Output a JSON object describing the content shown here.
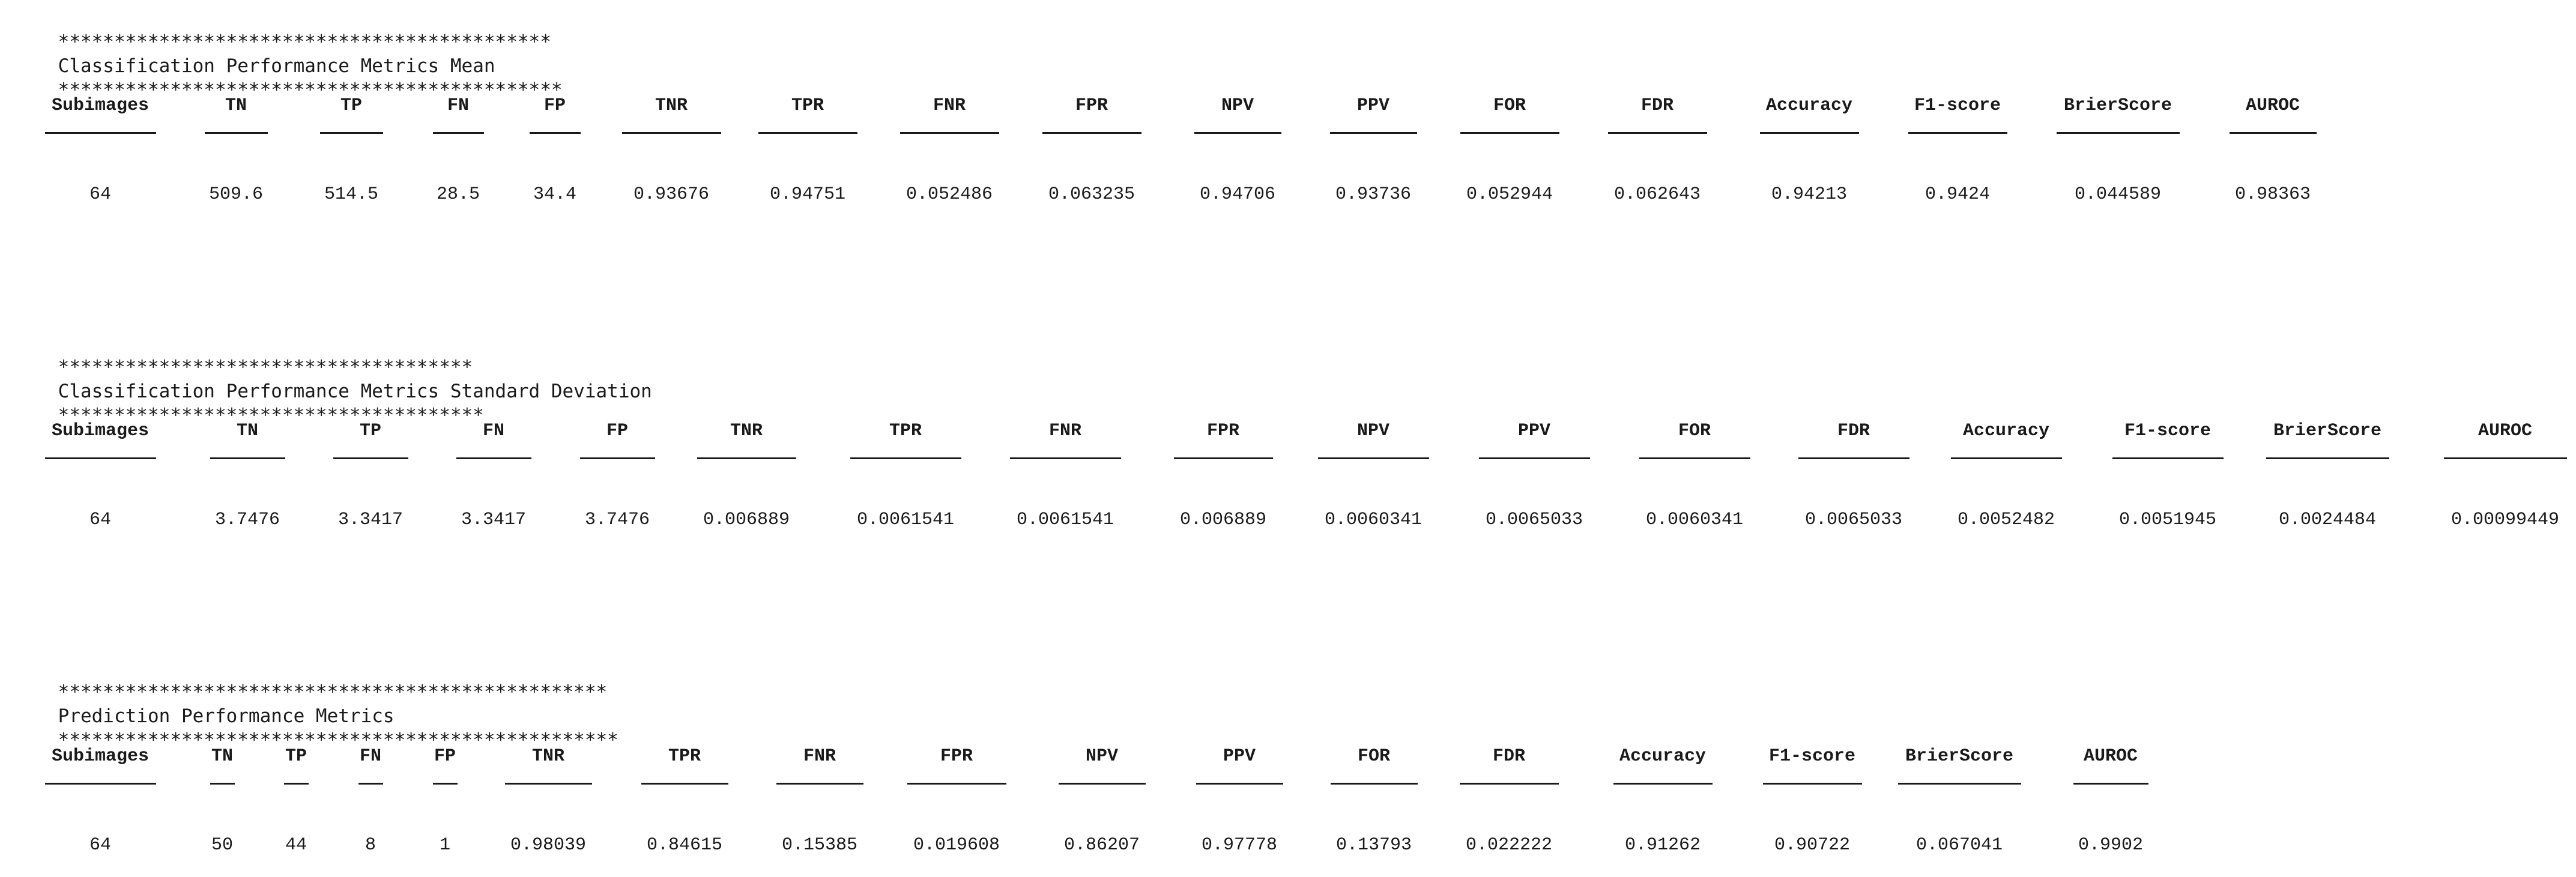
{
  "sections": [
    {
      "id": "mean",
      "banner_left": "********************************************",
      "title": "Classification Performance Metrics Mean",
      "banner_right": "*********************************************",
      "headers": [
        "Subimages",
        "TN",
        "TP",
        "FN",
        "FP",
        "TNR",
        "TPR",
        "FNR",
        "FPR",
        "NPV",
        "PPV",
        "FOR",
        "FDR",
        "Accuracy",
        "F1-score",
        "BrierScore",
        "AUROC"
      ],
      "values": [
        "64",
        "509.6",
        "514.5",
        "28.5",
        "34.4",
        "0.93676",
        "0.94751",
        "0.052486",
        "0.063235",
        "0.94706",
        "0.93736",
        "0.052944",
        "0.062643",
        "0.94213",
        "0.9424",
        "0.044589",
        "0.98363"
      ]
    },
    {
      "id": "std",
      "banner_left": "*************************************",
      "title": "Classification Performance Metrics Standard Deviation",
      "banner_right": "**************************************",
      "headers": [
        "Subimages",
        "TN",
        "TP",
        "FN",
        "FP",
        "TNR",
        "TPR",
        "FNR",
        "FPR",
        "NPV",
        "PPV",
        "FOR",
        "FDR",
        "Accuracy",
        "F1-score",
        "BrierScore",
        "AUROC"
      ],
      "values": [
        "64",
        "3.7476",
        "3.3417",
        "3.3417",
        "3.7476",
        "0.006889",
        "0.0061541",
        "0.0061541",
        "0.006889",
        "0.0060341",
        "0.0065033",
        "0.0060341",
        "0.0065033",
        "0.0052482",
        "0.0051945",
        "0.0024484",
        "0.00099449"
      ]
    },
    {
      "id": "prediction",
      "banner_left": "*************************************************",
      "title": "Prediction Performance Metrics",
      "banner_right": "**************************************************",
      "headers": [
        "Subimages",
        "TN",
        "TP",
        "FN",
        "FP",
        "TNR",
        "TPR",
        "FNR",
        "FPR",
        "NPV",
        "PPV",
        "FOR",
        "FDR",
        "Accuracy",
        "F1-score",
        "BrierScore",
        "AUROC"
      ],
      "values": [
        "64",
        "50",
        "44",
        "8",
        "1",
        "0.98039",
        "0.84615",
        "0.15385",
        "0.019608",
        "0.86207",
        "0.97778",
        "0.13793",
        "0.022222",
        "0.91262",
        "0.90722",
        "0.067041",
        "0.9902"
      ]
    }
  ]
}
